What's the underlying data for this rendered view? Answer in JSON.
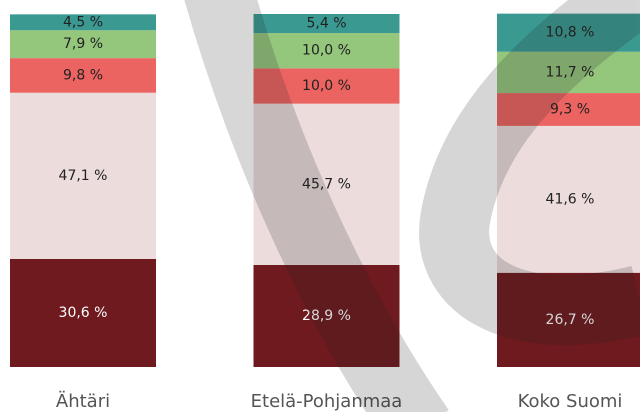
{
  "chart_data": {
    "type": "stacked_bar",
    "categories": [
      "Ähtäri",
      "Etelä-Pohjanmaa",
      "Koko Suomi"
    ],
    "ylim": [
      0,
      100
    ],
    "series": [
      {
        "color": "#6e1a1e",
        "values": [
          30.6,
          28.9,
          26.7
        ],
        "value_labels": [
          "30,6 %",
          "28,9 %",
          "26,7 %"
        ]
      },
      {
        "color": "#ecdcdc",
        "values": [
          47.1,
          45.7,
          41.6
        ],
        "value_labels": [
          "47,1 %",
          "45,7 %",
          "41,6 %"
        ]
      },
      {
        "color": "#ec6461",
        "values": [
          9.8,
          10.0,
          9.3
        ],
        "value_labels": [
          "9,8 %",
          "10,0 %",
          "9,3 %"
        ]
      },
      {
        "color": "#94c67c",
        "values": [
          7.9,
          10.0,
          11.7
        ],
        "value_labels": [
          "7,9 %",
          "10,0 %",
          "11,7 %"
        ]
      },
      {
        "color": "#3a9a92",
        "values": [
          4.5,
          5.4,
          10.8
        ],
        "value_labels": [
          "4,5 %",
          "5,4 %",
          "10,8 %"
        ]
      }
    ]
  }
}
